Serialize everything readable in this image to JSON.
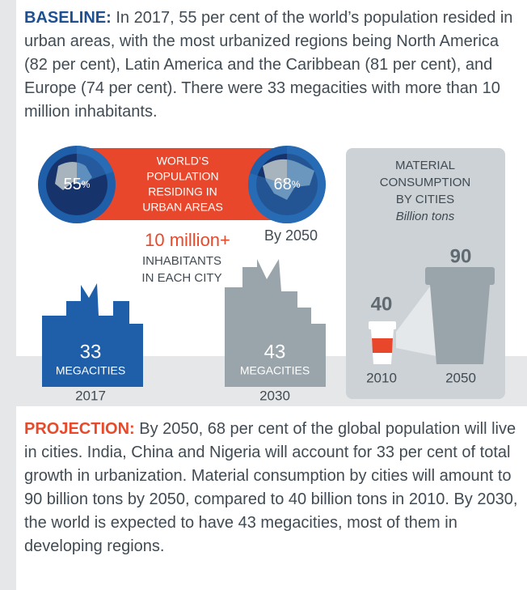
{
  "baseline": {
    "label": "BASELINE:",
    "text": "In 2017, 55 per cent of the world’s population resided in urban areas, with the most urbanized regions being North America (82 per cent), Latin America and the Caribbean (81 per cent), and Europe (74 per cent). There were 33 megacities with more than 10 million inhabitants."
  },
  "urban_population": {
    "title_lines": [
      "WORLD’S",
      "POPULATION",
      "RESIDING IN",
      "URBAN AREAS"
    ],
    "globes": [
      {
        "value": "55",
        "unit": "%"
      },
      {
        "value": "68",
        "unit": "%"
      }
    ],
    "year_label": "By 2050"
  },
  "megacities": {
    "threshold": "10 million+",
    "threshold_note_lines": [
      "INHABITANTS",
      "IN EACH CITY"
    ],
    "items": [
      {
        "count": "33",
        "label": "MEGACITIES",
        "year": "2017"
      },
      {
        "count": "43",
        "label": "MEGACITIES",
        "year": "2030"
      }
    ]
  },
  "material": {
    "title_lines": [
      "MATERIAL",
      "CONSUMPTION",
      "BY CITIES"
    ],
    "unit": "Billion tons",
    "items": [
      {
        "value": "40",
        "year": "2010"
      },
      {
        "value": "90",
        "year": "2050"
      }
    ]
  },
  "projection": {
    "label": "PROJECTION:",
    "text": "By 2050, 68 per cent of the global population will live in cities. India, China and Nigeria will account for 33 per cent of total growth in urbanization. Material consumption by cities will amount to 90 billion tons by 2050, compared to 40 billion tons in 2010. By 2030, the world is expected to have 43 megacities, most of them in developing regions."
  }
}
